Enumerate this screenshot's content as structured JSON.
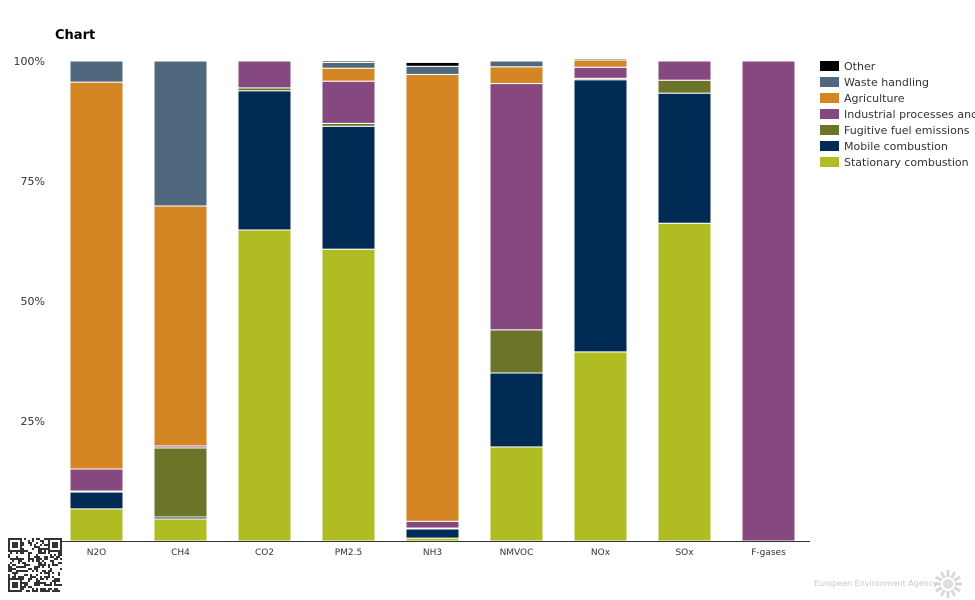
{
  "chart_data": {
    "type": "bar",
    "stacked": true,
    "title": "Chart",
    "categories": [
      "N2O",
      "CH4",
      "CO2",
      "PM2.5",
      "NH3",
      "NMVOC",
      "NOx",
      "SOx",
      "F-gases"
    ],
    "ylim": [
      0,
      100
    ],
    "yticks": [
      "100%",
      "75%",
      "50%",
      "25%"
    ],
    "ytick_values": [
      100,
      75,
      50,
      25
    ],
    "legend_position": "right",
    "series": [
      {
        "name": "Stationary combustion",
        "color": "#afbd22",
        "values": [
          6.7,
          4.6,
          64.8,
          60.8,
          0.6,
          19.6,
          39.4,
          66.2,
          0
        ]
      },
      {
        "name": "Mobile combustion",
        "color": "#002b54",
        "values": [
          3.5,
          0.4,
          29.0,
          25.6,
          1.9,
          15.4,
          56.7,
          27.1,
          0
        ]
      },
      {
        "name": "Fugitive fuel emissions",
        "color": "#6c7429",
        "values": [
          0.2,
          14.4,
          0.6,
          0.6,
          0.2,
          9.0,
          0.3,
          2.7,
          0
        ]
      },
      {
        "name": "Industrial processes and solvent use",
        "color": "#85497f",
        "values": [
          4.6,
          0.4,
          5.6,
          8.8,
          1.4,
          51.3,
          2.3,
          4.0,
          100
        ]
      },
      {
        "name": "Agriculture",
        "color": "#d48625",
        "values": [
          80.6,
          50.0,
          0,
          2.7,
          93.1,
          3.5,
          1.5,
          0,
          0
        ]
      },
      {
        "name": "Waste handling",
        "color": "#50687d",
        "values": [
          4.4,
          30.2,
          0,
          1.2,
          1.7,
          1.2,
          0.3,
          0,
          0
        ]
      },
      {
        "name": "Other",
        "color": "#000000",
        "values": [
          0,
          0,
          0,
          0.3,
          0.8,
          0,
          0,
          0,
          0
        ]
      }
    ]
  },
  "footer": {
    "agency": "European Environment Agency"
  }
}
